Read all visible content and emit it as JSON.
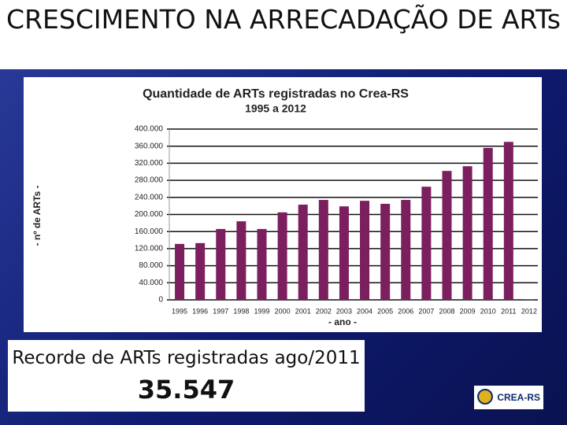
{
  "slide": {
    "title": "CRESCIMENTO NA ARRECADAÇÃO DE ARTs",
    "record_text": "Recorde de ARTs registradas ago/2011",
    "record_value": "35.547",
    "logo": "CREA-RS"
  },
  "chart_data": {
    "type": "bar",
    "title": "Quantidade de ARTs registradas no Crea-RS",
    "subtitle": "1995 a 2012",
    "y_label": "- nº de ARTs -",
    "x_label": "- ano -",
    "categories": [
      "1995",
      "1996",
      "1997",
      "1998",
      "1999",
      "2000",
      "2001",
      "2002",
      "2003",
      "2004",
      "2005",
      "2006",
      "2007",
      "2008",
      "2009",
      "2010",
      "2011",
      "2012"
    ],
    "values": [
      131000,
      133000,
      166000,
      184000,
      166000,
      205000,
      223000,
      234000,
      219000,
      232000,
      225000,
      234000,
      265000,
      302000,
      313000,
      356000,
      370000,
      1000
    ],
    "color": "#7b1f5e",
    "ylim": [
      0,
      400000
    ],
    "yticks": [
      0,
      {
        "value": 40000,
        "label": "40.000"
      },
      {
        "value": 80000,
        "label": "80.000"
      },
      {
        "value": 120000,
        "label": "120.000"
      },
      {
        "value": 160000,
        "label": "160.000"
      },
      {
        "value": 200000,
        "label": "200.000"
      },
      {
        "value": 240000,
        "label": "240.000"
      },
      {
        "value": 280000,
        "label": "280.000"
      },
      {
        "value": 320000,
        "label": "320.000"
      },
      {
        "value": 360000,
        "label": "360.000"
      },
      {
        "value": 400000,
        "label": "400.000"
      }
    ],
    "grid": true
  }
}
